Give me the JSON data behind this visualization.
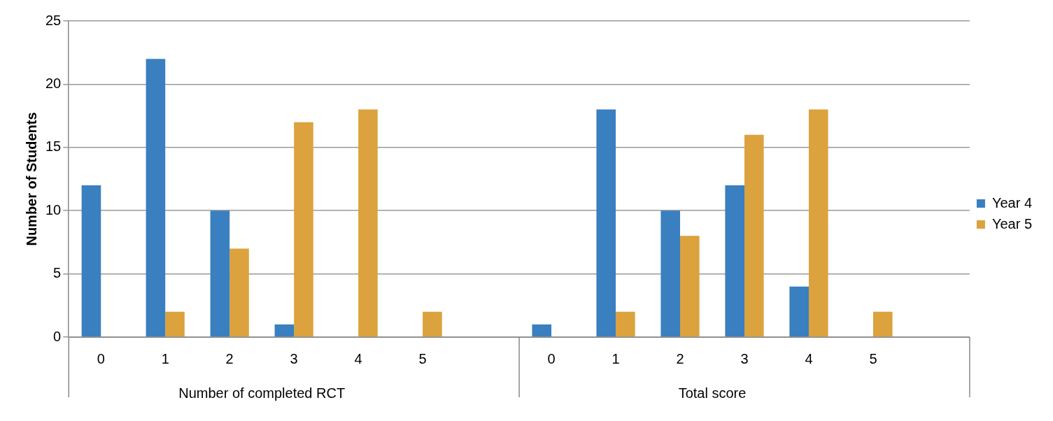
{
  "chart_data": {
    "type": "bar",
    "ylabel": "Number of Students",
    "categories": [
      "0",
      "1",
      "2",
      "3",
      "4",
      "5",
      null,
      "0",
      "1",
      "2",
      "3",
      "4",
      "5",
      null
    ],
    "series": [
      {
        "name": "Year 4",
        "color": "#3a7fbf",
        "values": [
          12,
          22,
          10,
          1,
          0,
          0,
          null,
          1,
          18,
          10,
          12,
          4,
          0,
          null
        ]
      },
      {
        "name": "Year 5",
        "color": "#dba23d",
        "values": [
          0,
          2,
          7,
          17,
          18,
          2,
          null,
          0,
          2,
          8,
          16,
          18,
          2,
          null
        ]
      }
    ],
    "annotations": [
      "Number of completed RCT",
      "Total score"
    ],
    "ylim": [
      0,
      25
    ],
    "yticks": [
      0,
      5,
      10,
      15,
      20,
      25
    ],
    "grid": "y",
    "legend": "right"
  }
}
